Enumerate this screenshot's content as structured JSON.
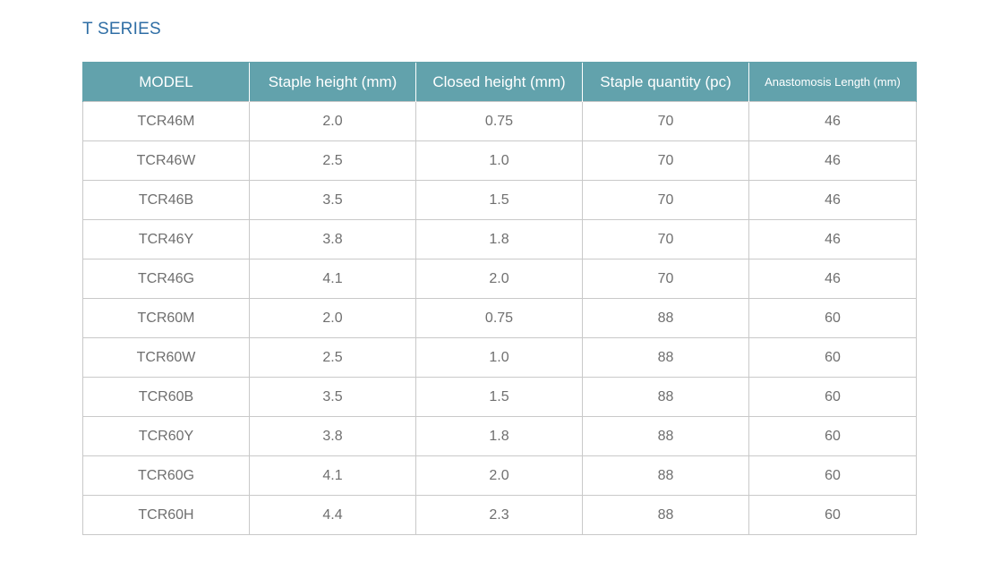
{
  "section_title": "T SERIES",
  "table": {
    "headers": [
      "MODEL",
      "Staple height (mm)",
      "Closed height (mm)",
      "Staple quantity (pc)",
      "Anastomosis Length (mm)"
    ],
    "rows": [
      [
        "TCR46M",
        "2.0",
        "0.75",
        "70",
        "46"
      ],
      [
        "TCR46W",
        "2.5",
        "1.0",
        "70",
        "46"
      ],
      [
        "TCR46B",
        "3.5",
        "1.5",
        "70",
        "46"
      ],
      [
        "TCR46Y",
        "3.8",
        "1.8",
        "70",
        "46"
      ],
      [
        "TCR46G",
        "4.1",
        "2.0",
        "70",
        "46"
      ],
      [
        "TCR60M",
        "2.0",
        "0.75",
        "88",
        "60"
      ],
      [
        "TCR60W",
        "2.5",
        "1.0",
        "88",
        "60"
      ],
      [
        "TCR60B",
        "3.5",
        "1.5",
        "88",
        "60"
      ],
      [
        "TCR60Y",
        "3.8",
        "1.8",
        "88",
        "60"
      ],
      [
        "TCR60G",
        "4.1",
        "2.0",
        "88",
        "60"
      ],
      [
        "TCR60H",
        "4.4",
        "2.3",
        "88",
        "60"
      ]
    ]
  },
  "colors": {
    "title": "#2f6ea5",
    "header_background": "#62a2ac",
    "header_text": "#ffffff",
    "cell_text": "#6f6f6f",
    "grid_lines": "#c9c9c9"
  }
}
